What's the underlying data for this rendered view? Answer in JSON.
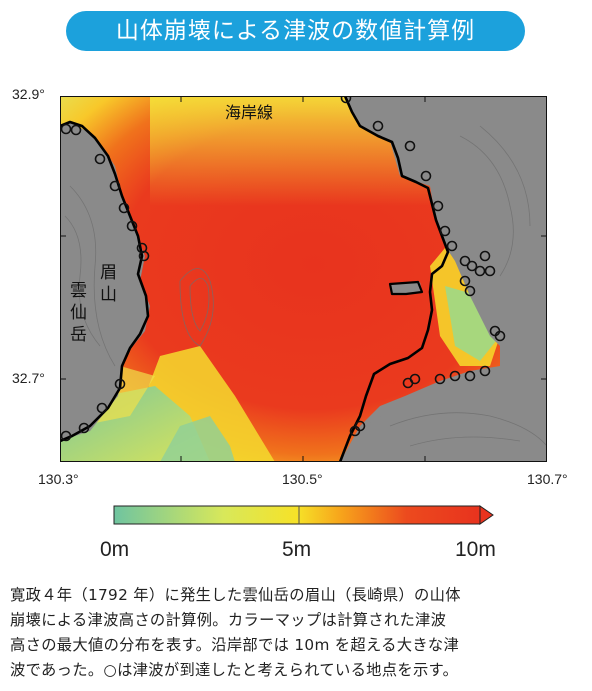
{
  "title": "山体崩壊による津波の数値計算例",
  "map": {
    "lat_labels": [
      "32.9°",
      "32.7°"
    ],
    "lon_labels": [
      "130.3°",
      "130.5°",
      "130.7°"
    ],
    "coastline_label": "海岸線",
    "mayuyama_label": [
      "眉",
      "山"
    ],
    "unzen_label": [
      "雲",
      "仙",
      "岳"
    ]
  },
  "colorbar": {
    "labels": [
      "0m",
      "5m",
      "10m"
    ],
    "colors": [
      "#6fc4a0",
      "#d8e85a",
      "#f6e228",
      "#f7a41b",
      "#ec4a1e",
      "#e8331e"
    ]
  },
  "colors": {
    "banner": "#1ca1dc",
    "land": "#8a8a8a",
    "coastline": "#000000",
    "tsunami_max": "#e8351e"
  },
  "caption": [
    "寛政４年（1792 年）に発生した雲仙岳の眉山（長崎県）の山体",
    "崩壊による津波高さの計算例。カラーマップは計算された津波",
    "高さの最大値の分布を表す。沿岸部では 10m を超える大きな津",
    "波であった。○は津波が到達したと考えられている地点を示す。"
  ]
}
